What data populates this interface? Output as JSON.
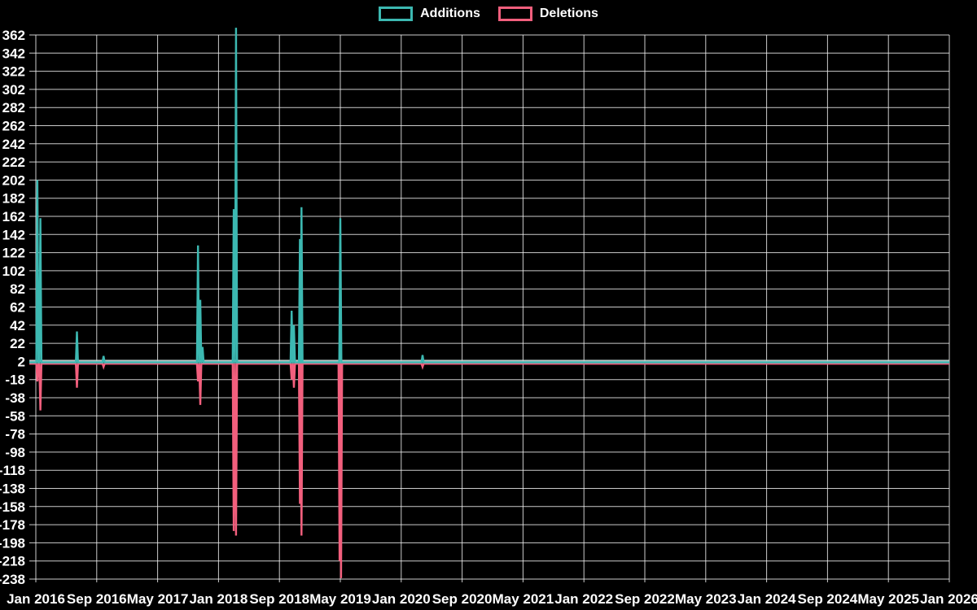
{
  "legend": {
    "items": [
      {
        "label": "Additions",
        "color": "#3cb8b1"
      },
      {
        "label": "Deletions",
        "color": "#f25f7d"
      }
    ]
  },
  "colors": {
    "background": "#000000",
    "grid": "#efefef",
    "text": "#ffffff",
    "additions": "#3cb8b1",
    "deletions": "#f25f7d",
    "baseline_highlight": "#c7d6d4"
  },
  "chart_data": {
    "type": "line",
    "title": "",
    "legend_position": "top-center",
    "grid": true,
    "x_axis": {
      "start": "Jan 2016",
      "end": "Jan 2026",
      "months_span": 120,
      "tick_interval_months": 8,
      "tick_labels": [
        "Jan 2016",
        "Sep 2016",
        "May 2017",
        "Jan 2018",
        "Sep 2018",
        "May 2019",
        "Jan 2020",
        "Sep 2020",
        "May 2021",
        "Jan 2022",
        "Sep 2022",
        "May 2023",
        "Jan 2024",
        "Sep 2024",
        "May 2025",
        "Jan 2026"
      ]
    },
    "y_axis": {
      "min": -238,
      "max": 362,
      "step": 20,
      "tick_labels": [
        362,
        342,
        322,
        302,
        282,
        262,
        242,
        222,
        202,
        182,
        162,
        142,
        122,
        102,
        82,
        62,
        42,
        22,
        2,
        -18,
        -38,
        -58,
        -78,
        -98,
        -118,
        -138,
        -158,
        -178,
        -198,
        -218,
        -238
      ]
    },
    "series": [
      {
        "name": "Additions",
        "color": "#3cb8b1",
        "baseline": 2,
        "spikes": [
          {
            "month": 0.2,
            "date": "Jan 2016",
            "value": 202
          },
          {
            "month": 0.6,
            "date": "Jan 2016",
            "value": 160
          },
          {
            "month": 5.4,
            "date": "Jun 2016",
            "value": 35
          },
          {
            "month": 8.9,
            "date": "Oct 2016",
            "value": 8
          },
          {
            "month": 21.3,
            "date": "Oct 2017",
            "value": 130
          },
          {
            "month": 21.6,
            "date": "Oct 2017",
            "value": 70
          },
          {
            "month": 21.9,
            "date": "Nov 2017",
            "value": 18
          },
          {
            "month": 26.0,
            "date": "Mar 2018",
            "value": 170
          },
          {
            "month": 26.3,
            "date": "Mar 2018",
            "value": 370
          },
          {
            "month": 33.6,
            "date": "Oct 2018",
            "value": 58
          },
          {
            "month": 33.9,
            "date": "Nov 2018",
            "value": 42
          },
          {
            "month": 34.7,
            "date": "Nov 2018",
            "value": 137
          },
          {
            "month": 34.9,
            "date": "Nov 2018",
            "value": 172
          },
          {
            "month": 40.0,
            "date": "May 2019",
            "value": 160
          },
          {
            "month": 50.8,
            "date": "Mar 2020",
            "value": 9
          }
        ]
      },
      {
        "name": "Deletions",
        "color": "#f25f7d",
        "baseline": 0,
        "spikes": [
          {
            "month": 0.2,
            "date": "Jan 2016",
            "value": -20
          },
          {
            "month": 0.6,
            "date": "Jan 2016",
            "value": -52
          },
          {
            "month": 5.4,
            "date": "Jun 2016",
            "value": -27
          },
          {
            "month": 8.9,
            "date": "Oct 2016",
            "value": -4
          },
          {
            "month": 21.3,
            "date": "Oct 2017",
            "value": -20
          },
          {
            "month": 21.6,
            "date": "Oct 2017",
            "value": -46
          },
          {
            "month": 26.0,
            "date": "Mar 2018",
            "value": -185
          },
          {
            "month": 26.3,
            "date": "Mar 2018",
            "value": -190
          },
          {
            "month": 33.6,
            "date": "Oct 2018",
            "value": -18
          },
          {
            "month": 33.9,
            "date": "Nov 2018",
            "value": -27
          },
          {
            "month": 34.7,
            "date": "Nov 2018",
            "value": -155
          },
          {
            "month": 34.9,
            "date": "Nov 2018",
            "value": -190
          },
          {
            "month": 39.9,
            "date": "May 2019",
            "value": -218
          },
          {
            "month": 40.1,
            "date": "May 2019",
            "value": -237
          },
          {
            "month": 50.8,
            "date": "Mar 2020",
            "value": -4
          }
        ]
      }
    ]
  }
}
